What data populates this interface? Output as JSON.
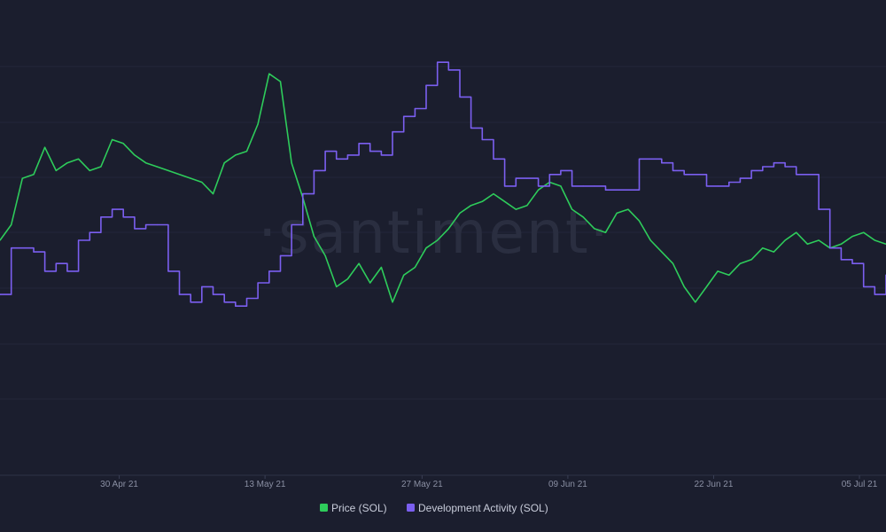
{
  "chart_data": {
    "type": "line",
    "title": "",
    "xlabel": "",
    "ylabel": "",
    "watermark": "·santiment·",
    "x_ticks": [
      "30 Apr 21",
      "13 May 21",
      "27 May 21",
      "09 Jun 21",
      "22 Jun 21",
      "05 Jul 21"
    ],
    "x_range": [
      "2021-04-20",
      "2021-07-08"
    ],
    "y_range": [
      0,
      100
    ],
    "grid": "horizontal",
    "legend_placement": "bottom-center",
    "series": [
      {
        "name": "Price (SOL)",
        "color": "#2ecc5b",
        "x": [
          "2021-04-20",
          "2021-04-21",
          "2021-04-22",
          "2021-04-23",
          "2021-04-24",
          "2021-04-25",
          "2021-04-26",
          "2021-04-27",
          "2021-04-28",
          "2021-04-29",
          "2021-04-30",
          "2021-05-01",
          "2021-05-02",
          "2021-05-03",
          "2021-05-04",
          "2021-05-05",
          "2021-05-06",
          "2021-05-07",
          "2021-05-08",
          "2021-05-09",
          "2021-05-10",
          "2021-05-11",
          "2021-05-12",
          "2021-05-13",
          "2021-05-14",
          "2021-05-15",
          "2021-05-16",
          "2021-05-17",
          "2021-05-18",
          "2021-05-19",
          "2021-05-20",
          "2021-05-21",
          "2021-05-22",
          "2021-05-23",
          "2021-05-24",
          "2021-05-25",
          "2021-05-26",
          "2021-05-27",
          "2021-05-28",
          "2021-05-29",
          "2021-05-30",
          "2021-05-31",
          "2021-06-01",
          "2021-06-02",
          "2021-06-03",
          "2021-06-04",
          "2021-06-05",
          "2021-06-06",
          "2021-06-07",
          "2021-06-08",
          "2021-06-09",
          "2021-06-10",
          "2021-06-11",
          "2021-06-12",
          "2021-06-13",
          "2021-06-14",
          "2021-06-15",
          "2021-06-16",
          "2021-06-17",
          "2021-06-18",
          "2021-06-19",
          "2021-06-20",
          "2021-06-21",
          "2021-06-22",
          "2021-06-23",
          "2021-06-24",
          "2021-06-25",
          "2021-06-26",
          "2021-06-27",
          "2021-06-28",
          "2021-06-29",
          "2021-06-30",
          "2021-07-01",
          "2021-07-02",
          "2021-07-03",
          "2021-07-04",
          "2021-07-05",
          "2021-07-06",
          "2021-07-07",
          "2021-07-08"
        ],
        "values": [
          52,
          56,
          68,
          69,
          76,
          70,
          72,
          73,
          70,
          71,
          78,
          77,
          74,
          72,
          71,
          70,
          69,
          68,
          67,
          64,
          72,
          74,
          75,
          82,
          95,
          93,
          72,
          63,
          53,
          48,
          40,
          42,
          46,
          41,
          45,
          36,
          43,
          45,
          50,
          52,
          55,
          59,
          61,
          62,
          64,
          62,
          60,
          61,
          65,
          67,
          66,
          60,
          58,
          55,
          54,
          59,
          60,
          57,
          52,
          49,
          46,
          40,
          36,
          40,
          44,
          43,
          46,
          47,
          50,
          49,
          52,
          54,
          51,
          52,
          50,
          51,
          53,
          54,
          52,
          51
        ]
      },
      {
        "name": "Development Activity (SOL)",
        "color": "#7b5ff0",
        "x": [
          "2021-04-20",
          "2021-04-21",
          "2021-04-22",
          "2021-04-23",
          "2021-04-24",
          "2021-04-25",
          "2021-04-26",
          "2021-04-27",
          "2021-04-28",
          "2021-04-29",
          "2021-04-30",
          "2021-05-01",
          "2021-05-02",
          "2021-05-03",
          "2021-05-04",
          "2021-05-05",
          "2021-05-06",
          "2021-05-07",
          "2021-05-08",
          "2021-05-09",
          "2021-05-10",
          "2021-05-11",
          "2021-05-12",
          "2021-05-13",
          "2021-05-14",
          "2021-05-15",
          "2021-05-16",
          "2021-05-17",
          "2021-05-18",
          "2021-05-19",
          "2021-05-20",
          "2021-05-21",
          "2021-05-22",
          "2021-05-23",
          "2021-05-24",
          "2021-05-25",
          "2021-05-26",
          "2021-05-27",
          "2021-05-28",
          "2021-05-29",
          "2021-05-30",
          "2021-05-31",
          "2021-06-01",
          "2021-06-02",
          "2021-06-03",
          "2021-06-04",
          "2021-06-05",
          "2021-06-06",
          "2021-06-07",
          "2021-06-08",
          "2021-06-09",
          "2021-06-10",
          "2021-06-11",
          "2021-06-12",
          "2021-06-13",
          "2021-06-14",
          "2021-06-15",
          "2021-06-16",
          "2021-06-17",
          "2021-06-18",
          "2021-06-19",
          "2021-06-20",
          "2021-06-21",
          "2021-06-22",
          "2021-06-23",
          "2021-06-24",
          "2021-06-25",
          "2021-06-26",
          "2021-06-27",
          "2021-06-28",
          "2021-06-29",
          "2021-06-30",
          "2021-07-01",
          "2021-07-02",
          "2021-07-03",
          "2021-07-04",
          "2021-07-05",
          "2021-07-06",
          "2021-07-07",
          "2021-07-08"
        ],
        "values": [
          38,
          50,
          50,
          49,
          44,
          46,
          44,
          52,
          54,
          58,
          60,
          58,
          55,
          56,
          56,
          44,
          38,
          36,
          40,
          38,
          36,
          35,
          37,
          41,
          44,
          48,
          56,
          64,
          70,
          75,
          73,
          74,
          77,
          75,
          74,
          80,
          84,
          86,
          92,
          98,
          96,
          89,
          81,
          78,
          73,
          66,
          68,
          68,
          66,
          69,
          70,
          66,
          66,
          66,
          65,
          65,
          65,
          73,
          73,
          72,
          70,
          69,
          69,
          66,
          66,
          67,
          68,
          70,
          71,
          72,
          71,
          69,
          69,
          60,
          50,
          47,
          46,
          40,
          38,
          43
        ]
      }
    ]
  },
  "legend": {
    "items": [
      {
        "label": "Price (SOL)",
        "color": "#2ecc5b"
      },
      {
        "label": "Development Activity (SOL)",
        "color": "#7b5ff0"
      }
    ]
  }
}
